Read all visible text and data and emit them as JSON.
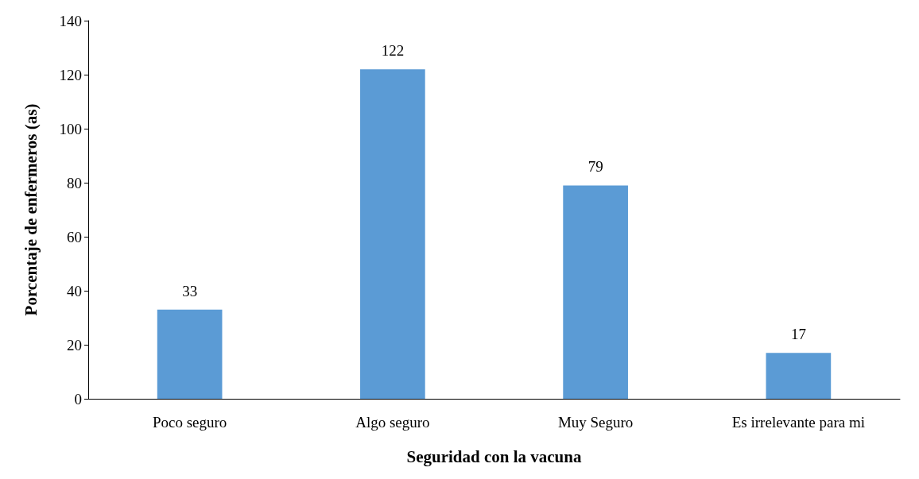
{
  "chart_data": {
    "type": "bar",
    "categories": [
      "Poco seguro",
      "Algo seguro",
      "Muy Seguro",
      "Es irrelevante para mi"
    ],
    "values": [
      33,
      122,
      79,
      17
    ],
    "color": "#5b9bd5",
    "xlabel": "Seguridad con la vacuna",
    "ylabel": "Porcentaje de enfermeros (as)",
    "ylim": [
      0,
      140
    ],
    "yticks": [
      0,
      20,
      40,
      60,
      80,
      100,
      120,
      140
    ],
    "grid": false,
    "data_labels": true
  }
}
